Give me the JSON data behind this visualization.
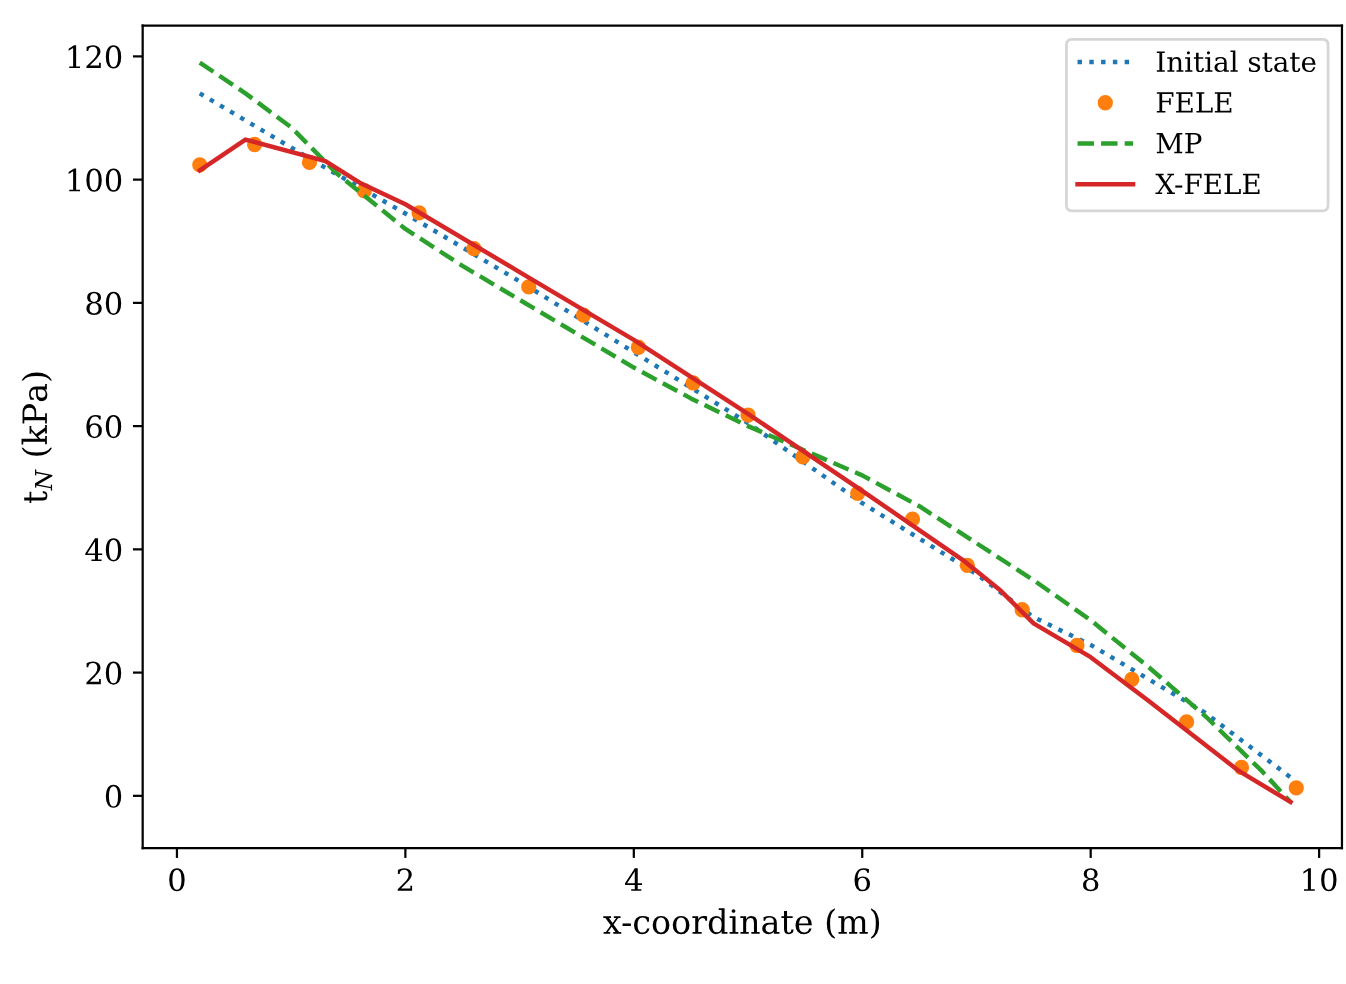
{
  "chart_data": {
    "type": "line",
    "xlabel": "x-coordinate (m)",
    "ylabel": "t$_{N}$ (kPa)",
    "xlim": [
      -0.3,
      10.2
    ],
    "ylim": [
      -8.5,
      125
    ],
    "xticks": [
      0,
      2,
      4,
      6,
      8,
      10
    ],
    "yticks": [
      0,
      20,
      40,
      60,
      80,
      100,
      120
    ],
    "grid": false,
    "legend": "top right",
    "series": [
      {
        "name": "Initial state",
        "line_style": "dotted",
        "marker": "none",
        "color": "#1f77b4",
        "x": [
          0.2,
          1.2,
          2,
          3,
          4,
          5,
          6,
          7,
          7.5,
          8,
          9,
          9.75
        ],
        "values": [
          114,
          103,
          94.5,
          83.5,
          72,
          60.5,
          47.5,
          36,
          29,
          24.5,
          13.5,
          3
        ]
      },
      {
        "name": "FELE",
        "type": "scatter",
        "marker": "circle",
        "color": "#ff7f0e",
        "x": [
          0.2,
          0.68,
          1.16,
          1.64,
          2.12,
          2.6,
          3.08,
          3.56,
          4.04,
          4.52,
          5.0,
          5.48,
          5.96,
          6.44,
          6.92,
          7.4,
          7.88,
          8.36,
          8.84,
          9.32,
          9.8
        ],
        "values": [
          102.4,
          105.7,
          102.8,
          98.2,
          94.6,
          88.8,
          82.6,
          78,
          72.8,
          67,
          61.8,
          55,
          49.1,
          44.9,
          37.4,
          30.2,
          24.4,
          18.9,
          12,
          4.6,
          1.3
        ]
      },
      {
        "name": "MP",
        "line_style": "dashed",
        "marker": "none",
        "color": "#2ca02c",
        "x": [
          0.2,
          0.6,
          1.0,
          1.4,
          2,
          2.5,
          3,
          3.5,
          4,
          4.5,
          5,
          5.5,
          6,
          6.5,
          7,
          7.5,
          8,
          8.5,
          9,
          9.5,
          9.75
        ],
        "values": [
          119,
          114,
          108.5,
          101,
          92,
          86,
          80.5,
          75,
          69.5,
          64.5,
          60,
          56,
          52,
          47,
          41,
          35,
          28.5,
          21,
          13,
          4,
          -1
        ]
      },
      {
        "name": "X-FELE",
        "line_style": "solid",
        "marker": "none",
        "color": "#d62728",
        "x": [
          0.2,
          0.6,
          1.3,
          1.6,
          2,
          3,
          4,
          5,
          6,
          6.9,
          7.2,
          7.5,
          8,
          8.5,
          9.3,
          9.75
        ],
        "values": [
          101.5,
          106.5,
          103,
          99.5,
          96,
          85,
          74,
          62,
          49.5,
          38,
          33.5,
          28,
          22.5,
          15.5,
          4,
          -1
        ]
      }
    ]
  }
}
